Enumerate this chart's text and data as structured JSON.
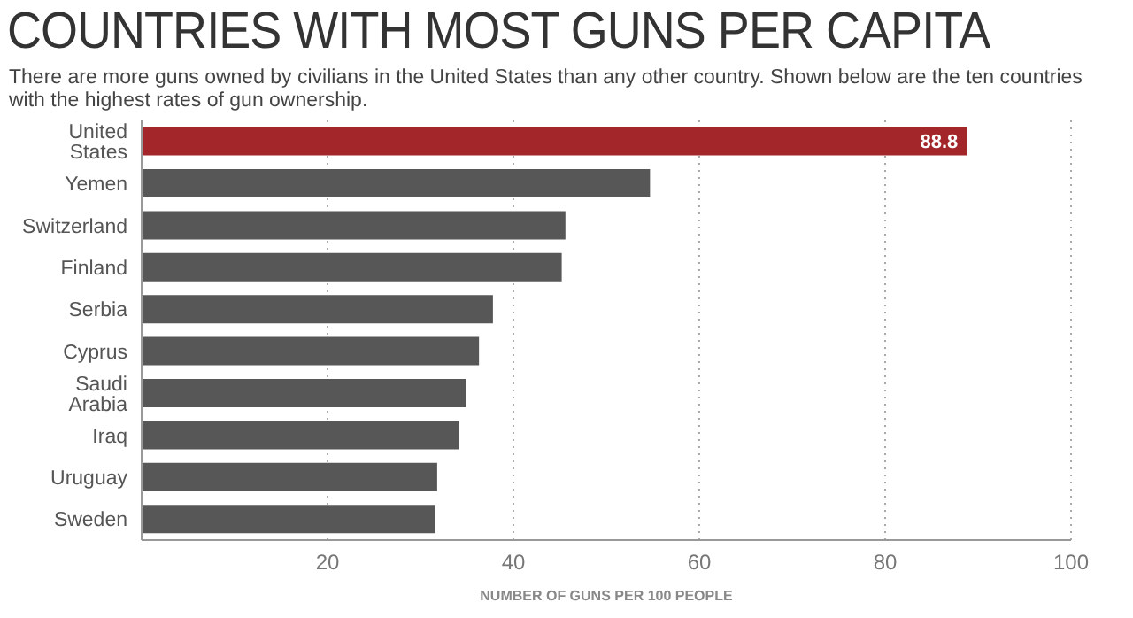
{
  "chart_data": {
    "type": "bar",
    "orientation": "horizontal",
    "title": "COUNTRIES WITH MOST GUNS PER CAPITA",
    "subtitle": "There are more guns owned by civilians in the United States than any other country. Shown below are the ten countries with the highest rates of gun ownership.",
    "xlabel": "NUMBER OF GUNS PER 100 PEOPLE",
    "categories": [
      "United States",
      "Yemen",
      "Switzerland",
      "Finland",
      "Serbia",
      "Cyprus",
      "Saudi Arabia",
      "Iraq",
      "Uruguay",
      "Sweden"
    ],
    "values": [
      88.8,
      54.7,
      45.6,
      45.2,
      37.8,
      36.3,
      34.9,
      34.1,
      31.8,
      31.6
    ],
    "value_labels": [
      "88.8",
      null,
      null,
      null,
      null,
      null,
      null,
      null,
      null,
      null
    ],
    "colors": [
      "#a3262b",
      "#575757",
      "#575757",
      "#575757",
      "#575757",
      "#575757",
      "#575757",
      "#575757",
      "#575757",
      "#575757"
    ],
    "xlim": [
      0,
      100
    ],
    "xticks": [
      {
        "value": 0,
        "label": null
      },
      20,
      40,
      60,
      80,
      100
    ],
    "grid": "x"
  }
}
